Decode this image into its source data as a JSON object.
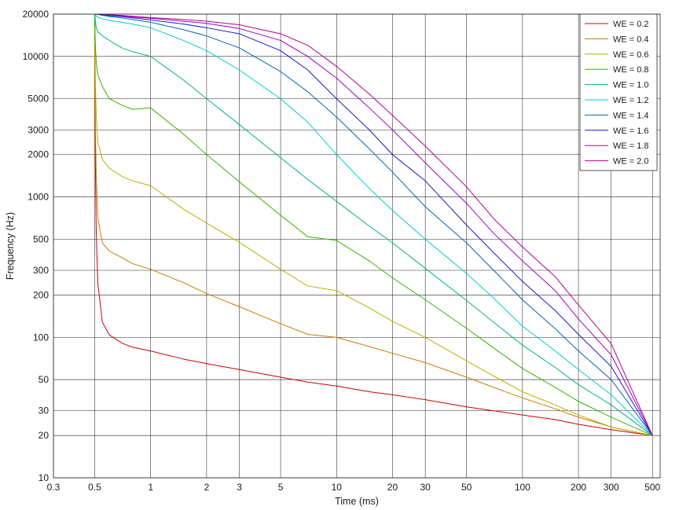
{
  "chart_data": {
    "type": "line",
    "title": "",
    "xlabel": "Time (ms)",
    "ylabel": "Frequency (Hz)",
    "x_scale": "log",
    "y_scale": "log",
    "xlim": [
      0.3,
      550
    ],
    "ylim": [
      10,
      20000
    ],
    "grid": true,
    "legend_position": "top-right",
    "xticks": [
      0.3,
      0.5,
      1,
      2,
      3,
      5,
      10,
      20,
      30,
      50,
      100,
      200,
      300,
      500
    ],
    "xtick_labels": [
      "0.3",
      "0.5",
      "1",
      "2",
      "3",
      "5",
      "10",
      "20",
      "30",
      "50",
      "100",
      "200",
      "300",
      "500"
    ],
    "yticks": [
      10,
      20,
      30,
      50,
      100,
      200,
      300,
      500,
      1000,
      2000,
      3000,
      5000,
      10000,
      20000
    ],
    "ytick_labels": [
      "10",
      "20",
      "30",
      "50",
      "100",
      "200",
      "300",
      "500",
      "1000",
      "2000",
      "3000",
      "5000",
      "10000",
      "20000"
    ],
    "x": [
      0.5,
      0.502,
      0.505,
      0.51,
      0.52,
      0.55,
      0.6,
      0.7,
      0.8,
      1,
      1.5,
      2,
      3,
      5,
      7,
      10,
      15,
      20,
      30,
      50,
      70,
      100,
      150,
      200,
      300,
      500
    ],
    "series": [
      {
        "name": "WE = 0.2",
        "color": "#cc0000",
        "values": [
          20000,
          4680,
          1500,
          529,
          242,
          128,
          104,
          91,
          85,
          80,
          70,
          65,
          59,
          52,
          48,
          45,
          41,
          39,
          36,
          32,
          30,
          28,
          26,
          24,
          22,
          20
        ]
      },
      {
        "name": "WE = 0.4",
        "color": "#cc7a00",
        "values": [
          20000,
          7000,
          2900,
          1340,
          710,
          470,
          410,
          370,
          335,
          305,
          245,
          205,
          165,
          125,
          105,
          100,
          86,
          77,
          66,
          52,
          44,
          37,
          31,
          27,
          23,
          20
        ]
      },
      {
        "name": "WE = 0.6",
        "color": "#b3b300",
        "values": [
          20000,
          10500,
          6200,
          3800,
          2450,
          1850,
          1600,
          1400,
          1300,
          1200,
          820,
          650,
          475,
          305,
          232,
          215,
          162,
          130,
          100,
          68,
          53,
          41,
          33,
          28,
          23,
          20
        ]
      },
      {
        "name": "WE = 0.8",
        "color": "#33b300",
        "values": [
          20000,
          15000,
          11500,
          9000,
          7400,
          6100,
          5000,
          4500,
          4200,
          4300,
          2800,
          2000,
          1280,
          740,
          520,
          490,
          350,
          265,
          185,
          116,
          84,
          60,
          44,
          35,
          27,
          20
        ]
      },
      {
        "name": "WE = 1.0",
        "color": "#00b386",
        "values": [
          20000,
          19500,
          17500,
          16000,
          15000,
          14000,
          13000,
          11500,
          10800,
          10000,
          6800,
          5000,
          3270,
          1900,
          1330,
          930,
          620,
          470,
          310,
          183,
          128,
          88,
          61,
          46,
          33,
          20
        ]
      },
      {
        "name": "WE = 1.2",
        "color": "#00cccc",
        "values": [
          20000,
          20000,
          19800,
          19500,
          19000,
          18500,
          18000,
          17500,
          17000,
          16000,
          13000,
          11000,
          8000,
          5000,
          3400,
          2000,
          1150,
          800,
          500,
          285,
          190,
          120,
          80,
          59,
          39,
          20
        ]
      },
      {
        "name": "WE = 1.4",
        "color": "#0066b3",
        "values": [
          20000,
          20000,
          20000,
          20000,
          19900,
          19600,
          19200,
          18800,
          18300,
          17500,
          15500,
          14000,
          11500,
          7800,
          5600,
          3700,
          2200,
          1500,
          850,
          470,
          300,
          185,
          115,
          80,
          50,
          20
        ]
      },
      {
        "name": "WE = 1.6",
        "color": "#1a1acc",
        "values": [
          20000,
          20000,
          20000,
          20000,
          20000,
          19800,
          19500,
          19200,
          18800,
          18200,
          17000,
          16000,
          14500,
          11000,
          8000,
          5000,
          3000,
          2000,
          1300,
          630,
          400,
          250,
          155,
          105,
          62,
          20
        ]
      },
      {
        "name": "WE = 1.8",
        "color": "#9900cc",
        "values": [
          20000,
          20000,
          20000,
          20000,
          20000,
          19900,
          19700,
          19400,
          19100,
          18700,
          17800,
          17200,
          15800,
          13000,
          10000,
          7000,
          4300,
          3000,
          1750,
          900,
          550,
          350,
          215,
          135,
          75,
          20
        ]
      },
      {
        "name": "WE = 2.0",
        "color": "#b3008c",
        "values": [
          20000,
          20000,
          20000,
          20000,
          20000,
          20000,
          19800,
          19600,
          19300,
          18900,
          18300,
          17800,
          16800,
          14500,
          12000,
          8500,
          5400,
          3800,
          2300,
          1180,
          700,
          440,
          270,
          170,
          90,
          20
        ]
      }
    ]
  }
}
